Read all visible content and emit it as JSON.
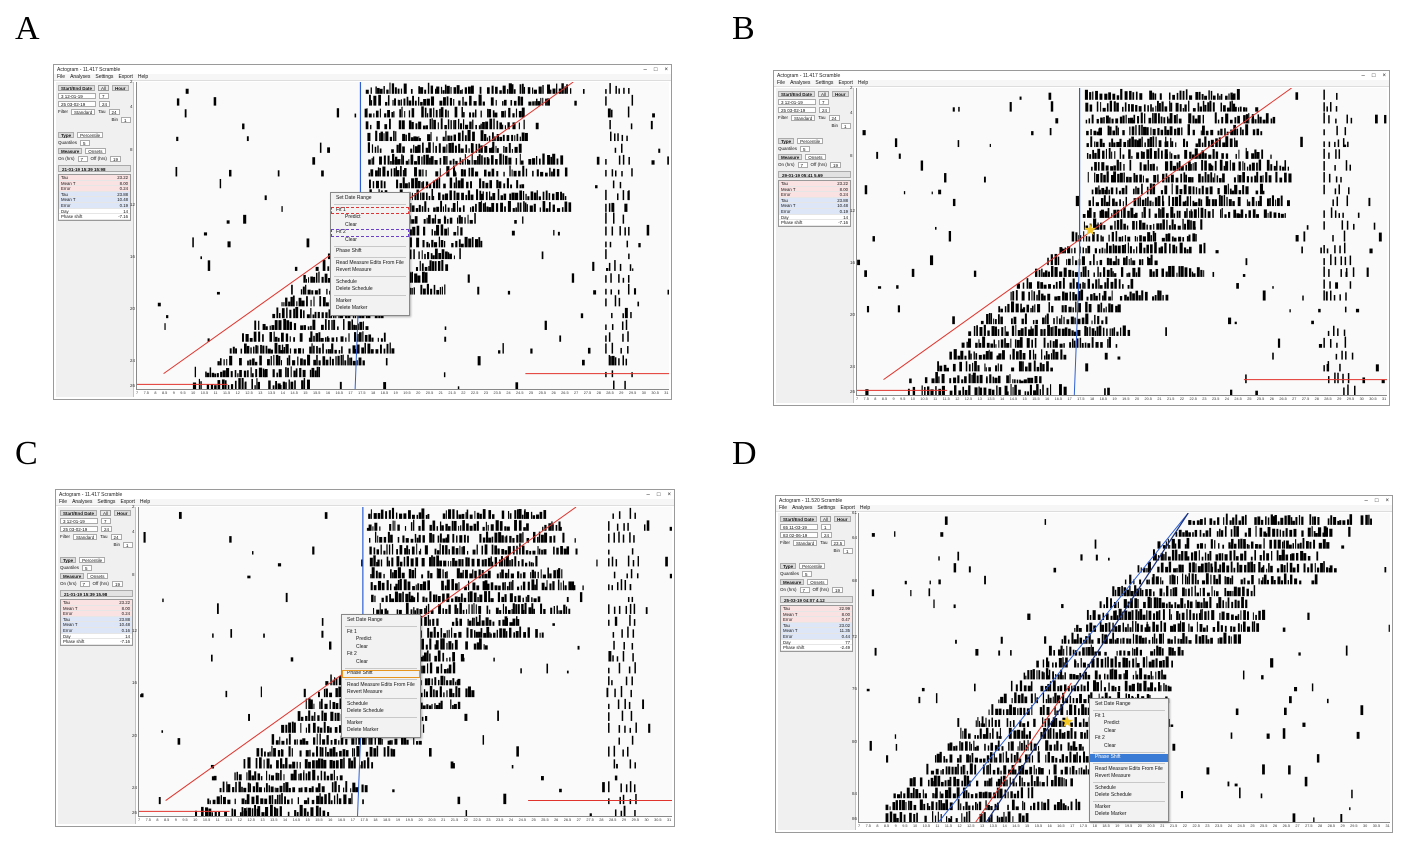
{
  "panels": [
    {
      "letter": "A",
      "title": "Actogram - 11.417 Scramble",
      "menu": [
        "File",
        "Analyses",
        "Settings",
        "Export",
        "Help"
      ]
    },
    {
      "letter": "B",
      "title": "Actogram - 11.417 Scramble",
      "menu": [
        "File",
        "Analyses",
        "Settings",
        "Export",
        "Help"
      ]
    },
    {
      "letter": "C",
      "title": "Actogram - 11.417 Scramble",
      "menu": [
        "File",
        "Analyses",
        "Settings",
        "Export",
        "Help"
      ]
    },
    {
      "letter": "D",
      "title": "Actogram - 11.520 Scramble",
      "menu": [
        "File",
        "Analyses",
        "Settings",
        "Export",
        "Help"
      ]
    }
  ],
  "sidebar": {
    "start_end_label": "Start/End Date",
    "all_label": "All",
    "hour_label": "Hour",
    "filter_label": "Filter",
    "filter_value": "Standard",
    "tau_label": "Tau",
    "bin_label": "Bin",
    "type_label": "Type",
    "type_value": "Percentile",
    "quantiles_label": "Quantiles",
    "quantiles_value": "5",
    "measure_label": "Measure",
    "measure_value": "Onsets",
    "on_label": "On (hrs)",
    "off_label": "Off (hrs)",
    "on_value": "7",
    "off_value": "19",
    "stat_labels": [
      "Tau",
      "Mean T",
      "Error",
      "Tau",
      "Mean T",
      "Error",
      "Day",
      "Phase shift"
    ]
  },
  "sidebars": {
    "A": {
      "start": "3 12-01-19",
      "end": "25 03-02-19",
      "hour1": "7",
      "hour2": "24",
      "tau": "24",
      "bin": "1",
      "stamp": "21-01-19 15:39 15:98",
      "stats": [
        "23.22",
        "8.00",
        "0.24",
        "23.88",
        "10.48",
        "0.19",
        "14",
        "-7.16"
      ]
    },
    "B": {
      "start": "3 12-01-19",
      "end": "25 03-02-19",
      "hour1": "7",
      "hour2": "24",
      "tau": "24",
      "bin": "1",
      "stamp": "29-01-19 05:41 5.69",
      "stats": [
        "23.22",
        "8.00",
        "0.24",
        "23.88",
        "10.48",
        "0.19",
        "14",
        "-7.16"
      ]
    },
    "C": {
      "start": "3 12-01-19",
      "end": "25 03-02-19",
      "hour1": "7",
      "hour2": "24",
      "tau": "24",
      "bin": "1",
      "stamp": "21-01-19 15:39 15.98",
      "stats": [
        "23.22",
        "8.00",
        "0.24",
        "23.88",
        "10.48",
        "0.16",
        "14",
        "-7.16"
      ]
    },
    "D": {
      "start": "65 11-03-19",
      "end": "83 02-06-19",
      "hour1": "1",
      "hour2": "24",
      "tau": "23.5",
      "bin": "1",
      "stamp": "25-03-19 04:07 4.12",
      "stats": [
        "22.99",
        "8.00",
        "0.47",
        "23.02",
        "11.35",
        "0.44",
        "77",
        "-2.49"
      ]
    }
  },
  "menus": {
    "A": [
      "Set Date Range",
      "Fit 1",
      "Predict",
      "Clear",
      "Fit 2",
      "Clear",
      "Phase Shift",
      "Read Measure Edits From File",
      "Revert Measure",
      "Schedule",
      "Delete Schedule",
      "Marker",
      "Delete Marker"
    ],
    "C": [
      "Set Date Range",
      "Fit 1",
      "Predict",
      "Clear",
      "Fit 2",
      "Clear",
      "Phase Shift",
      "Read Measure Edits From File",
      "Revert Measure",
      "Schedule",
      "Delete Schedule",
      "Marker",
      "Delete Marker"
    ],
    "D": [
      "Set Date Range",
      "Fit 1",
      "Predict",
      "Clear",
      "Fit 2",
      "Clear",
      "Phase Shift",
      "Read Measure Edits From File",
      "Revert Measure",
      "Schedule",
      "Delete Schedule",
      "Marker",
      "Delete Marker"
    ]
  },
  "yticks": {
    "A": [
      "2",
      "4",
      "8",
      "12",
      "16",
      "20",
      "24",
      "26"
    ],
    "B": [
      "2",
      "4",
      "8",
      "12",
      "16",
      "20",
      "24",
      "26"
    ],
    "C": [
      "2",
      "4",
      "8",
      "12",
      "16",
      "20",
      "24",
      "26"
    ],
    "D": [
      "61",
      "64",
      "68",
      "72",
      "76",
      "80",
      "84",
      "86"
    ]
  },
  "xticks": [
    "7",
    "7.5",
    "8",
    "8.5",
    "9",
    "9.5",
    "10",
    "10.5",
    "11",
    "11.5",
    "12",
    "12.5",
    "13",
    "13.5",
    "14",
    "14.5",
    "15",
    "15.5",
    "16",
    "16.5",
    "17",
    "17.5",
    "18",
    "18.5",
    "19",
    "19.5",
    "20",
    "20.5",
    "21",
    "21.5",
    "22",
    "22.5",
    "23",
    "23.5",
    "24",
    "24.5",
    "25",
    "25.5",
    "26",
    "26.5",
    "27",
    "27.5",
    "28",
    "28.5",
    "29",
    "29.5",
    "30",
    "30.5",
    "31"
  ],
  "window_controls": [
    "–",
    "□",
    "×"
  ],
  "colors": {
    "fit_red": "#e0332b",
    "fit_blue": "#2d5fd3",
    "highlight": "#3a7bd5",
    "star": "#f3c623"
  }
}
